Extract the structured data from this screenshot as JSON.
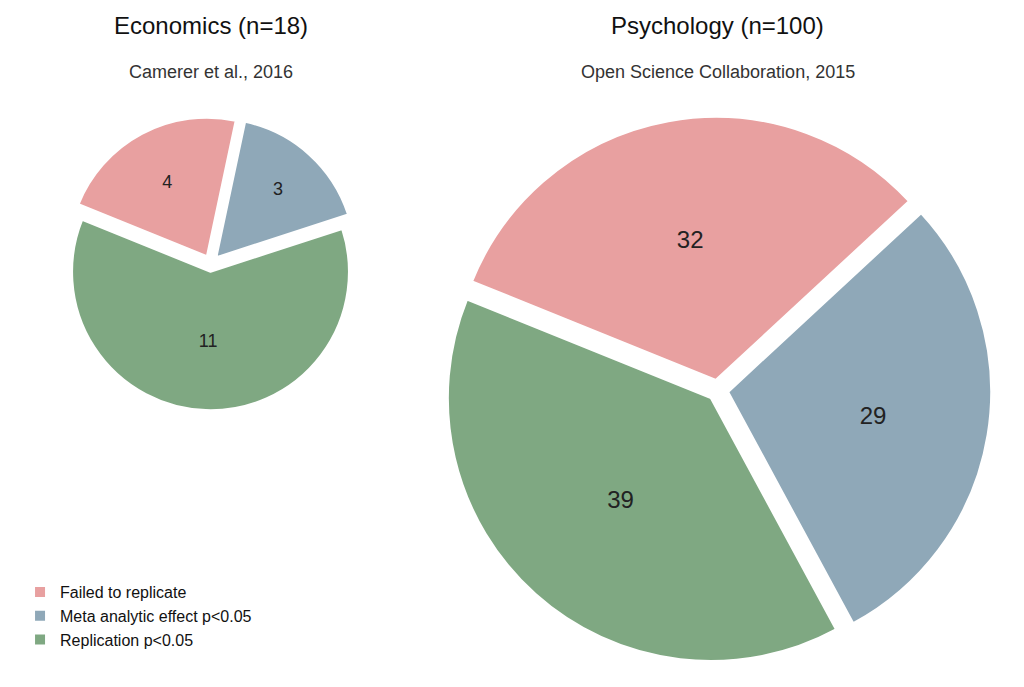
{
  "chart_data": [
    {
      "type": "pie",
      "title": "Economics (n=18)",
      "subtitle": "Camerer et al., 2016",
      "categories": [
        "Failed to replicate",
        "Meta analytic effect p<0.05",
        "Replication p<0.05"
      ],
      "values": [
        4,
        3,
        11
      ],
      "colors": [
        "#e8a0a0",
        "#8fa8b8",
        "#7fa882"
      ],
      "data_labels": true,
      "legend": "lower left"
    },
    {
      "type": "pie",
      "title": "Psychology (n=100)",
      "subtitle": "Open Science Collaboration, 2015",
      "categories": [
        "Failed to replicate",
        "Meta analytic effect p<0.05",
        "Replication p<0.05"
      ],
      "values": [
        32,
        29,
        39
      ],
      "colors": [
        "#e8a0a0",
        "#8fa8b8",
        "#7fa882"
      ],
      "data_labels": true
    }
  ]
}
